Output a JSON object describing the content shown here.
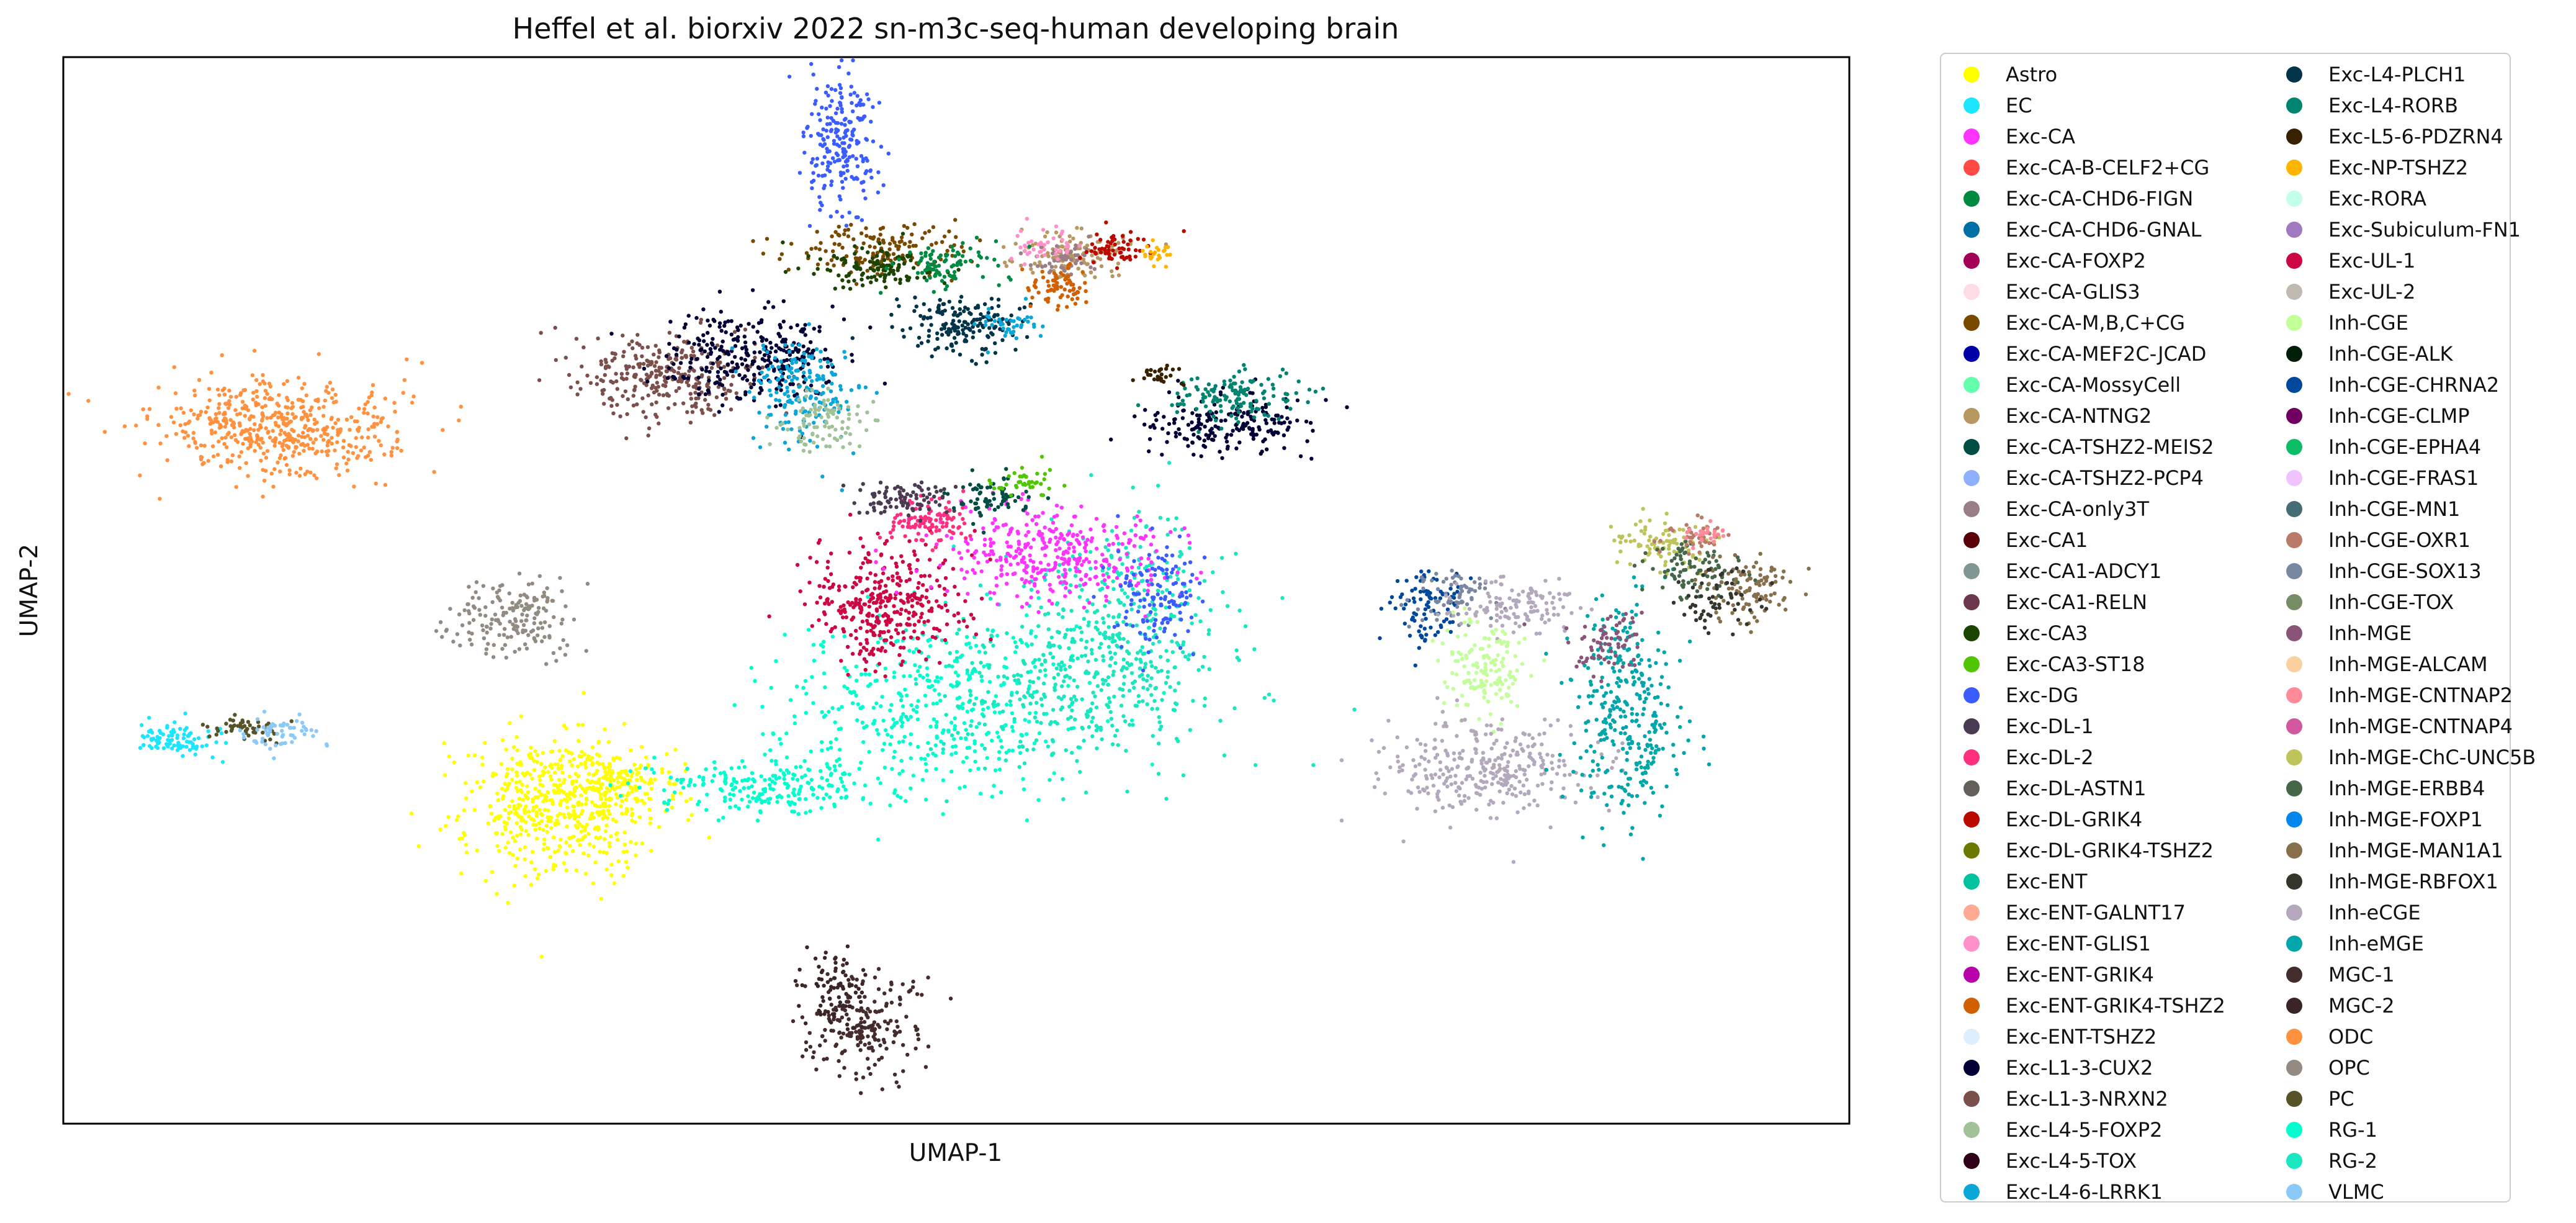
{
  "chart_data": {
    "type": "scatter",
    "title": "Heffel et al. biorxiv 2022 sn-m3c-seq-human developing brain",
    "xlabel": "UMAP-1",
    "ylabel": "UMAP-2",
    "xlim": [
      0,
      100
    ],
    "ylim": [
      0,
      100
    ],
    "xticks": [],
    "yticks": [],
    "grid": false,
    "legend_position": "right-outside",
    "legend_columns": 2,
    "series": [
      {
        "name": "Astro",
        "color": "#ffff00"
      },
      {
        "name": "EC",
        "color": "#1ce6ff"
      },
      {
        "name": "Exc-CA",
        "color": "#ff34ff"
      },
      {
        "name": "Exc-CA-B-CELF2+CG",
        "color": "#ff4a46"
      },
      {
        "name": "Exc-CA-CHD6-FIGN",
        "color": "#008941"
      },
      {
        "name": "Exc-CA-CHD6-GNAL",
        "color": "#006fa6"
      },
      {
        "name": "Exc-CA-FOXP2",
        "color": "#a30059"
      },
      {
        "name": "Exc-CA-GLIS3",
        "color": "#ffdbe5"
      },
      {
        "name": "Exc-CA-M,B,C+CG",
        "color": "#7a4900"
      },
      {
        "name": "Exc-CA-MEF2C-JCAD",
        "color": "#0000a6"
      },
      {
        "name": "Exc-CA-MossyCell",
        "color": "#63ffac"
      },
      {
        "name": "Exc-CA-NTNG2",
        "color": "#b79762"
      },
      {
        "name": "Exc-CA-TSHZ2-MEIS2",
        "color": "#004d43"
      },
      {
        "name": "Exc-CA-TSHZ2-PCP4",
        "color": "#8fb0ff"
      },
      {
        "name": "Exc-CA-only3T",
        "color": "#997d87"
      },
      {
        "name": "Exc-CA1",
        "color": "#5a0007"
      },
      {
        "name": "Exc-CA1-ADCY1",
        "color": "#809693"
      },
      {
        "name": "Exc-CA1-RELN",
        "color": "#6a3a4c"
      },
      {
        "name": "Exc-CA3",
        "color": "#1b4400"
      },
      {
        "name": "Exc-CA3-ST18",
        "color": "#4fc601"
      },
      {
        "name": "Exc-DG",
        "color": "#3b5dff"
      },
      {
        "name": "Exc-DL-1",
        "color": "#4a3b53"
      },
      {
        "name": "Exc-DL-2",
        "color": "#ff2f80"
      },
      {
        "name": "Exc-DL-ASTN1",
        "color": "#61615a"
      },
      {
        "name": "Exc-DL-GRIK4",
        "color": "#ba0900"
      },
      {
        "name": "Exc-DL-GRIK4-TSHZ2",
        "color": "#6b7900"
      },
      {
        "name": "Exc-ENT",
        "color": "#00c2a0"
      },
      {
        "name": "Exc-ENT-GALNT17",
        "color": "#ffaa92"
      },
      {
        "name": "Exc-ENT-GLIS1",
        "color": "#ff90c9"
      },
      {
        "name": "Exc-ENT-GRIK4",
        "color": "#b903aa"
      },
      {
        "name": "Exc-ENT-GRIK4-TSHZ2",
        "color": "#d16100"
      },
      {
        "name": "Exc-ENT-TSHZ2",
        "color": "#ddefff"
      },
      {
        "name": "Exc-L1-3-CUX2",
        "color": "#000035"
      },
      {
        "name": "Exc-L1-3-NRXN2",
        "color": "#7b4f4b"
      },
      {
        "name": "Exc-L4-5-FOXP2",
        "color": "#a1c299"
      },
      {
        "name": "Exc-L4-5-TOX",
        "color": "#300018"
      },
      {
        "name": "Exc-L4-6-LRRK1",
        "color": "#0aa6d8"
      },
      {
        "name": "Exc-L4-PLCH1",
        "color": "#013349"
      },
      {
        "name": "Exc-L4-RORB",
        "color": "#00846f"
      },
      {
        "name": "Exc-L5-6-PDZRN4",
        "color": "#372101"
      },
      {
        "name": "Exc-NP-TSHZ2",
        "color": "#ffb500"
      },
      {
        "name": "Exc-RORA",
        "color": "#c2ffed"
      },
      {
        "name": "Exc-Subiculum-FN1",
        "color": "#a079bf"
      },
      {
        "name": "Exc-UL-1",
        "color": "#cc0744"
      },
      {
        "name": "Exc-UL-2",
        "color": "#c0b9b2"
      },
      {
        "name": "Inh-CGE",
        "color": "#c2ff99"
      },
      {
        "name": "Inh-CGE-ALK",
        "color": "#001e09"
      },
      {
        "name": "Inh-CGE-CHRNA2",
        "color": "#00489c"
      },
      {
        "name": "Inh-CGE-CLMP",
        "color": "#6f0062"
      },
      {
        "name": "Inh-CGE-EPHA4",
        "color": "#0cbd66"
      },
      {
        "name": "Inh-CGE-FRAS1",
        "color": "#eec3ff"
      },
      {
        "name": "Inh-CGE-MN1",
        "color": "#456d75"
      },
      {
        "name": "Inh-CGE-OXR1",
        "color": "#b77b68"
      },
      {
        "name": "Inh-CGE-SOX13",
        "color": "#7a87a1"
      },
      {
        "name": "Inh-CGE-TOX",
        "color": "#788d66"
      },
      {
        "name": "Inh-MGE",
        "color": "#885578"
      },
      {
        "name": "Inh-MGE-ALCAM",
        "color": "#fad09f"
      },
      {
        "name": "Inh-MGE-CNTNAP2",
        "color": "#ff8a9a"
      },
      {
        "name": "Inh-MGE-CNTNAP4",
        "color": "#d157a0"
      },
      {
        "name": "Inh-MGE-ChC-UNC5B",
        "color": "#bec459"
      },
      {
        "name": "Inh-MGE-ERBB4",
        "color": "#456648"
      },
      {
        "name": "Inh-MGE-FOXP1",
        "color": "#0086ed"
      },
      {
        "name": "Inh-MGE-MAN1A1",
        "color": "#886f4c"
      },
      {
        "name": "Inh-MGE-RBFOX1",
        "color": "#34362d"
      },
      {
        "name": "Inh-eCGE",
        "color": "#b4a8bd"
      },
      {
        "name": "Inh-eMGE",
        "color": "#00a6aa"
      },
      {
        "name": "MGC-1",
        "color": "#452c2c"
      },
      {
        "name": "MGC-2",
        "color": "#3a2425"
      },
      {
        "name": "ODC",
        "color": "#ff913f"
      },
      {
        "name": "OPC",
        "color": "#938a81"
      },
      {
        "name": "PC",
        "color": "#575329"
      },
      {
        "name": "RG-1",
        "color": "#00fecf"
      },
      {
        "name": "RG-2",
        "color": "#1ae6c0"
      },
      {
        "name": "VLMC",
        "color": "#8cc9f6"
      }
    ],
    "clusters": [
      {
        "series": "Exc-DG",
        "cx": 43.6,
        "cy": 91.5,
        "sx": 1.0,
        "sy": 3.5,
        "n": 220
      },
      {
        "series": "ODC",
        "cx": 11.9,
        "cy": 65.2,
        "sx": 3.3,
        "sy": 2.2,
        "n": 520
      },
      {
        "series": "OPC",
        "cx": 25.4,
        "cy": 47.4,
        "sx": 1.6,
        "sy": 1.9,
        "n": 180
      },
      {
        "series": "EC",
        "cx": 6.5,
        "cy": 36.2,
        "sx": 1.2,
        "sy": 0.8,
        "n": 90
      },
      {
        "series": "PC",
        "cx": 10.0,
        "cy": 37.2,
        "sx": 0.9,
        "sy": 0.6,
        "n": 50
      },
      {
        "series": "VLMC",
        "cx": 12.1,
        "cy": 36.6,
        "sx": 1.1,
        "sy": 0.9,
        "n": 60
      },
      {
        "series": "Astro",
        "cx": 27.5,
        "cy": 30.0,
        "sx": 2.6,
        "sy": 3.5,
        "n": 520
      },
      {
        "series": "Astro",
        "cx": 31.3,
        "cy": 32.0,
        "sx": 1.9,
        "sy": 1.5,
        "n": 160
      },
      {
        "series": "MGC-1",
        "cx": 44.7,
        "cy": 9.3,
        "sx": 1.5,
        "sy": 2.4,
        "n": 200
      },
      {
        "series": "MGC-2",
        "cx": 43.2,
        "cy": 12.5,
        "sx": 0.9,
        "sy": 1.8,
        "n": 80
      },
      {
        "series": "RG-1",
        "cx": 39.5,
        "cy": 31.5,
        "sx": 3.5,
        "sy": 1.2,
        "n": 220
      },
      {
        "series": "RG-1",
        "cx": 48.5,
        "cy": 39.0,
        "sx": 4.5,
        "sy": 4.0,
        "n": 420
      },
      {
        "series": "RG-2",
        "cx": 56.5,
        "cy": 41.5,
        "sx": 4.0,
        "sy": 4.2,
        "n": 420
      },
      {
        "series": "RG-2",
        "cx": 60.0,
        "cy": 48.5,
        "sx": 2.2,
        "sy": 4.5,
        "n": 220
      },
      {
        "series": "Exc-UL-1",
        "cx": 46.0,
        "cy": 48.8,
        "sx": 2.1,
        "sy": 2.8,
        "n": 360
      },
      {
        "series": "Exc-CA",
        "cx": 55.5,
        "cy": 53.5,
        "sx": 3.2,
        "sy": 2.3,
        "n": 360
      },
      {
        "series": "Exc-DL-2",
        "cx": 48.5,
        "cy": 56.5,
        "sx": 1.2,
        "sy": 1.0,
        "n": 110
      },
      {
        "series": "Exc-DL-1",
        "cx": 47.0,
        "cy": 58.5,
        "sx": 1.5,
        "sy": 0.8,
        "n": 90
      },
      {
        "series": "Exc-DG",
        "cx": 61.2,
        "cy": 49.5,
        "sx": 1.2,
        "sy": 2.5,
        "n": 130
      },
      {
        "series": "Exc-CA-TSHZ2-MEIS2",
        "cx": 52.0,
        "cy": 59.0,
        "sx": 1.2,
        "sy": 1.0,
        "n": 70
      },
      {
        "series": "Exc-CA3-ST18",
        "cx": 54.0,
        "cy": 60.0,
        "sx": 1.0,
        "sy": 0.7,
        "n": 40
      },
      {
        "series": "Exc-L1-3-NRXN2",
        "cx": 33.5,
        "cy": 70.0,
        "sx": 2.5,
        "sy": 1.9,
        "n": 300
      },
      {
        "series": "Exc-L1-3-CUX2",
        "cx": 38.5,
        "cy": 72.0,
        "sx": 2.6,
        "sy": 2.2,
        "n": 300
      },
      {
        "series": "Exc-L4-6-LRRK1",
        "cx": 41.5,
        "cy": 69.0,
        "sx": 1.5,
        "sy": 2.6,
        "n": 180
      },
      {
        "series": "Exc-L4-5-FOXP2",
        "cx": 42.5,
        "cy": 66.0,
        "sx": 1.3,
        "sy": 1.5,
        "n": 90
      },
      {
        "series": "Exc-CA-M,B,C+CG",
        "cx": 45.5,
        "cy": 82.0,
        "sx": 2.4,
        "sy": 1.2,
        "n": 150
      },
      {
        "series": "Exc-CA3",
        "cx": 45.5,
        "cy": 80.2,
        "sx": 1.7,
        "sy": 0.9,
        "n": 120
      },
      {
        "series": "Exc-L4-PLCH1",
        "cx": 50.5,
        "cy": 75.0,
        "sx": 1.9,
        "sy": 1.4,
        "n": 170
      },
      {
        "series": "Exc-CA-NTNG2",
        "cx": 56.5,
        "cy": 81.5,
        "sx": 1.7,
        "sy": 1.2,
        "n": 120
      },
      {
        "series": "Exc-CA-CHD6-FIGN",
        "cx": 49.5,
        "cy": 80.5,
        "sx": 1.4,
        "sy": 1.0,
        "n": 90
      },
      {
        "series": "Exc-CA-only3T",
        "cx": 55.8,
        "cy": 80.8,
        "sx": 0.9,
        "sy": 0.9,
        "n": 50
      },
      {
        "series": "Exc-DL-GRIK4",
        "cx": 58.5,
        "cy": 82.0,
        "sx": 1.1,
        "sy": 0.8,
        "n": 60
      },
      {
        "series": "Exc-ENT-GRIK4-TSHZ2",
        "cx": 55.5,
        "cy": 78.5,
        "sx": 1.0,
        "sy": 0.9,
        "n": 70
      },
      {
        "series": "Exc-NP-TSHZ2",
        "cx": 61.0,
        "cy": 81.5,
        "sx": 0.5,
        "sy": 0.5,
        "n": 25
      },
      {
        "series": "Exc-ENT-GLIS1",
        "cx": 54.8,
        "cy": 82.5,
        "sx": 0.9,
        "sy": 0.8,
        "n": 40
      },
      {
        "series": "Exc-L4-6-LRRK1",
        "cx": 52.8,
        "cy": 75.0,
        "sx": 0.9,
        "sy": 0.8,
        "n": 40
      },
      {
        "series": "Exc-L1-3-CUX2",
        "cx": 65.0,
        "cy": 65.5,
        "sx": 2.3,
        "sy": 1.4,
        "n": 200
      },
      {
        "series": "Exc-L4-RORB",
        "cx": 65.5,
        "cy": 68.2,
        "sx": 1.8,
        "sy": 1.2,
        "n": 130
      },
      {
        "series": "Exc-L5-6-PDZRN4",
        "cx": 61.3,
        "cy": 70.0,
        "sx": 0.6,
        "sy": 0.5,
        "n": 30
      },
      {
        "series": "Inh-CGE-CHRNA2",
        "cx": 76.5,
        "cy": 48.5,
        "sx": 1.0,
        "sy": 1.8,
        "n": 90
      },
      {
        "series": "Inh-CGE-SOX13",
        "cx": 78.0,
        "cy": 49.5,
        "sx": 1.2,
        "sy": 1.3,
        "n": 70
      },
      {
        "series": "Inh-eCGE",
        "cx": 81.5,
        "cy": 48.5,
        "sx": 1.5,
        "sy": 1.2,
        "n": 120
      },
      {
        "series": "Inh-CGE",
        "cx": 79.5,
        "cy": 42.5,
        "sx": 1.1,
        "sy": 2.5,
        "n": 150
      },
      {
        "series": "Inh-eCGE",
        "cx": 79.5,
        "cy": 33.5,
        "sx": 2.8,
        "sy": 2.0,
        "n": 320
      },
      {
        "series": "Inh-eMGE",
        "cx": 87.5,
        "cy": 38.5,
        "sx": 1.6,
        "sy": 5.0,
        "n": 320
      },
      {
        "series": "Inh-MGE",
        "cx": 86.5,
        "cy": 45.0,
        "sx": 1.1,
        "sy": 1.6,
        "n": 70
      },
      {
        "series": "Inh-MGE-ChC-UNC5B",
        "cx": 89.5,
        "cy": 54.5,
        "sx": 1.3,
        "sy": 1.2,
        "n": 90
      },
      {
        "series": "Inh-MGE-ERBB4",
        "cx": 91.5,
        "cy": 52.0,
        "sx": 1.3,
        "sy": 1.4,
        "n": 90
      },
      {
        "series": "Inh-MGE-MAN1A1",
        "cx": 94.5,
        "cy": 50.0,
        "sx": 1.2,
        "sy": 1.4,
        "n": 100
      },
      {
        "series": "Inh-CGE-OXR1",
        "cx": 91.0,
        "cy": 55.0,
        "sx": 0.9,
        "sy": 0.8,
        "n": 40
      },
      {
        "series": "Inh-MGE-CNTNAP2",
        "cx": 91.8,
        "cy": 55.3,
        "sx": 0.6,
        "sy": 0.5,
        "n": 25
      },
      {
        "series": "Inh-MGE-RBFOX1",
        "cx": 92.5,
        "cy": 49.0,
        "sx": 1.5,
        "sy": 1.5,
        "n": 60
      }
    ]
  }
}
